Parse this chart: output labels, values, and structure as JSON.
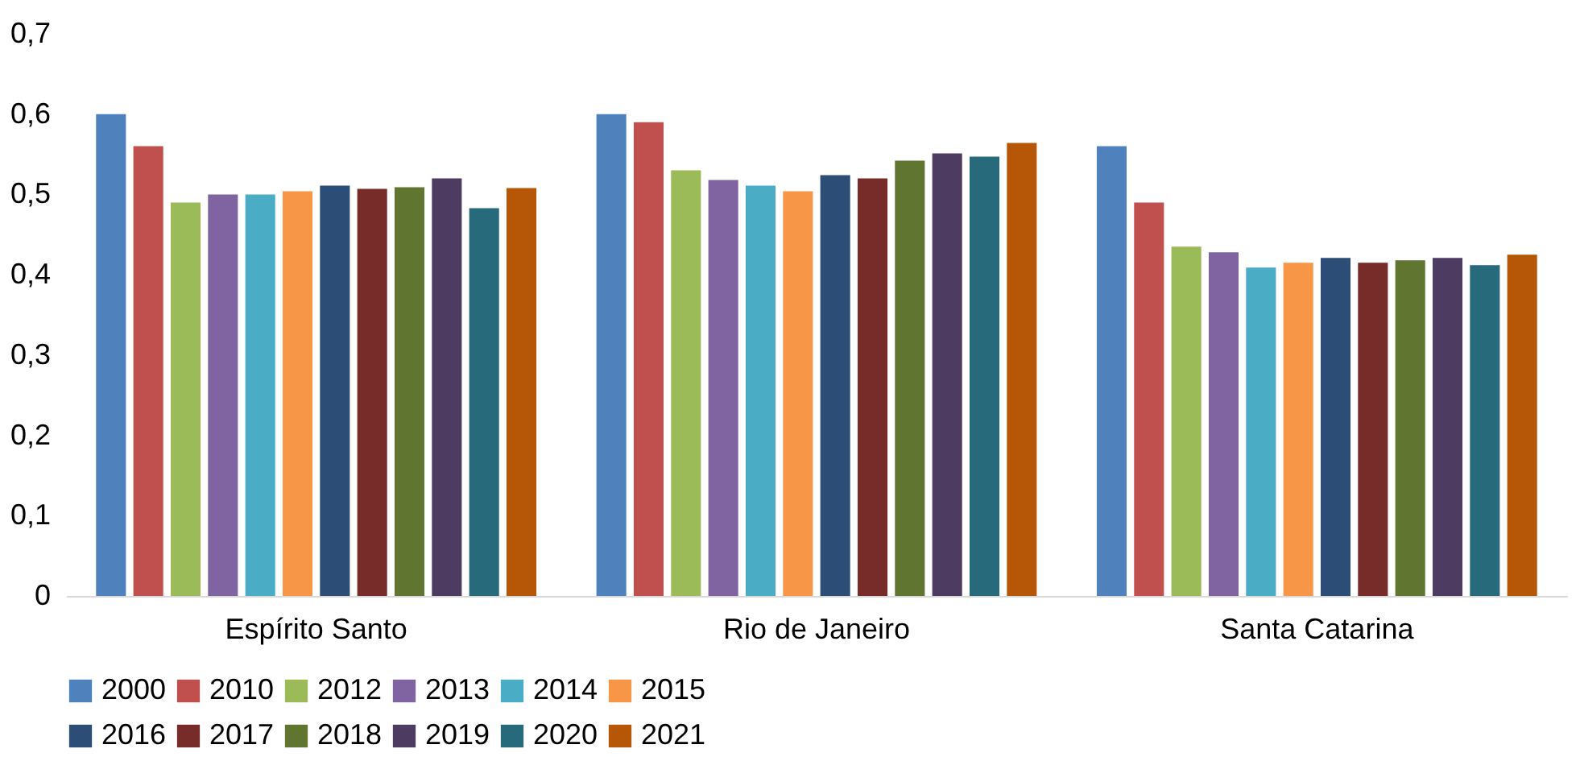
{
  "chart_data": {
    "type": "bar",
    "categories": [
      "Espírito Santo",
      "Rio de Janeiro",
      "Santa Catarina"
    ],
    "series": [
      {
        "name": "2000",
        "color": "#4f81bd",
        "values": [
          0.6,
          0.6,
          0.56
        ]
      },
      {
        "name": "2010",
        "color": "#c0504d",
        "values": [
          0.56,
          0.59,
          0.49
        ]
      },
      {
        "name": "2012",
        "color": "#9bbb59",
        "values": [
          0.49,
          0.53,
          0.435
        ]
      },
      {
        "name": "2013",
        "color": "#8064a2",
        "values": [
          0.5,
          0.518,
          0.428
        ]
      },
      {
        "name": "2014",
        "color": "#4bacc6",
        "values": [
          0.5,
          0.511,
          0.409
        ]
      },
      {
        "name": "2015",
        "color": "#f79646",
        "values": [
          0.504,
          0.504,
          0.415
        ]
      },
      {
        "name": "2016",
        "color": "#2c4d75",
        "values": [
          0.511,
          0.524,
          0.421
        ]
      },
      {
        "name": "2017",
        "color": "#772c2a",
        "values": [
          0.507,
          0.52,
          0.415
        ]
      },
      {
        "name": "2018",
        "color": "#5f7530",
        "values": [
          0.509,
          0.542,
          0.418
        ]
      },
      {
        "name": "2019",
        "color": "#4d3b62",
        "values": [
          0.52,
          0.551,
          0.421
        ]
      },
      {
        "name": "2020",
        "color": "#276a7c",
        "values": [
          0.483,
          0.547,
          0.412
        ]
      },
      {
        "name": "2021",
        "color": "#b65708",
        "values": [
          0.508,
          0.564,
          0.425
        ]
      }
    ],
    "ylim": [
      0,
      0.7
    ],
    "yticks": [
      0,
      {
        "value": 0.1,
        "label": "0,1"
      },
      {
        "value": 0.2,
        "label": "0,2"
      },
      {
        "value": 0.3,
        "label": "0,3"
      },
      {
        "value": 0.4,
        "label": "0,4"
      },
      {
        "value": 0.5,
        "label": "0,5"
      },
      {
        "value": 0.6,
        "label": "0,6"
      },
      {
        "value": 0.7,
        "label": "0,7"
      }
    ],
    "grid": false,
    "legend": "bottom"
  }
}
